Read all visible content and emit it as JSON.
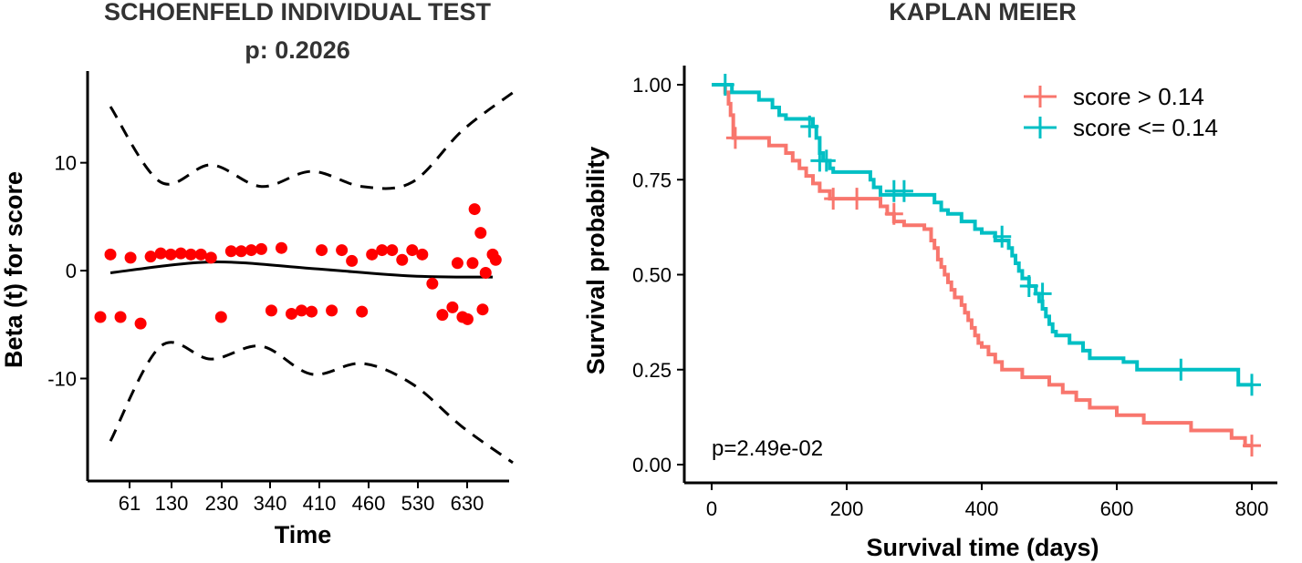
{
  "chart_data": [
    {
      "type": "scatter",
      "title": "SCHOENFELD INDIVIDUAL TEST",
      "subtitle": "p: 0.2026",
      "xlabel": "Time",
      "ylabel": "Beta (t) for score",
      "x_tick_labels": [
        "61",
        "130",
        "230",
        "340",
        "410",
        "460",
        "530",
        "630"
      ],
      "y_ticks": [
        10,
        0,
        -10
      ],
      "y_tick_labels": [
        "10",
        "0",
        "-10"
      ],
      "ylim": [
        -19.5,
        18.5
      ],
      "xlim": [
        0,
        40
      ],
      "point_color": "#ff0000",
      "points": {
        "x": [
          1,
          2,
          3,
          4,
          5,
          6,
          7,
          8,
          9,
          10,
          11,
          12,
          13,
          14,
          15,
          16,
          17,
          18,
          19,
          20,
          21,
          22,
          23,
          24,
          25,
          26,
          27,
          28,
          29,
          30,
          31,
          32,
          33,
          34,
          35,
          36,
          37,
          38,
          39,
          40
        ],
        "y": [
          -4.3,
          1.5,
          -4.3,
          1.2,
          -4.9,
          1.3,
          1.6,
          1.5,
          1.6,
          1.5,
          1.5,
          1.2,
          -4.3,
          1.8,
          1.8,
          1.9,
          2.0,
          -3.7,
          2.1,
          -4.0,
          -3.7,
          -3.8,
          1.9,
          -3.7,
          1.9,
          0.9,
          -3.8,
          1.5,
          1.9,
          1.9,
          1.0,
          1.9,
          1.5,
          -1.2,
          -4.1,
          -3.4,
          -4.3,
          0.7,
          -3.6,
          1.5
        ]
      },
      "extra_points": {
        "x": [
          36.5,
          37.5,
          38.2,
          38.8,
          39.3,
          40.3
        ],
        "y": [
          0.7,
          -4.5,
          5.7,
          3.5,
          -0.2,
          1.0
        ]
      },
      "fit_line": {
        "x": [
          2,
          12,
          22,
          32,
          40
        ],
        "y": [
          -0.2,
          0.8,
          0.2,
          -0.5,
          -0.6
        ]
      },
      "upper_band": {
        "x": [
          2,
          7,
          12,
          17,
          22,
          27,
          32,
          37,
          42
        ],
        "y": [
          15.2,
          8.2,
          9.8,
          7.8,
          9.2,
          7.8,
          8.2,
          13.0,
          16.5
        ]
      },
      "lower_band": {
        "x": [
          2,
          7,
          12,
          17,
          22,
          27,
          32,
          37,
          42
        ],
        "y": [
          -15.8,
          -7.0,
          -8.2,
          -7.0,
          -9.6,
          -8.6,
          -10.5,
          -14.5,
          -17.8
        ]
      }
    },
    {
      "type": "line",
      "title": "KAPLAN MEIER",
      "xlabel": "Survival time (days)",
      "ylabel": "Survival probability",
      "xlim": [
        -30,
        820
      ],
      "ylim": [
        -0.05,
        1.05
      ],
      "x_ticks": [
        0,
        200,
        400,
        600,
        800
      ],
      "x_tick_labels": [
        "0",
        "200",
        "400",
        "600",
        "800"
      ],
      "y_ticks": [
        0,
        0.25,
        0.5,
        0.75,
        1
      ],
      "y_tick_labels": [
        "0.00",
        "0.25",
        "0.50",
        "0.75",
        "1.00"
      ],
      "annotation": "p=2.49e-02",
      "legend_position": "top-right",
      "series": [
        {
          "name": "score > 0.14",
          "color": "#f8766d",
          "steps": [
            [
              0,
              1.0
            ],
            [
              20,
              0.98
            ],
            [
              25,
              0.95
            ],
            [
              28,
              0.92
            ],
            [
              32,
              0.86
            ],
            [
              50,
              0.86
            ],
            [
              60,
              0.86
            ],
            [
              80,
              0.86
            ],
            [
              85,
              0.84
            ],
            [
              100,
              0.84
            ],
            [
              110,
              0.82
            ],
            [
              120,
              0.8
            ],
            [
              130,
              0.78
            ],
            [
              140,
              0.76
            ],
            [
              150,
              0.74
            ],
            [
              160,
              0.72
            ],
            [
              175,
              0.7
            ],
            [
              240,
              0.7
            ],
            [
              250,
              0.68
            ],
            [
              260,
              0.66
            ],
            [
              270,
              0.64
            ],
            [
              285,
              0.63
            ],
            [
              315,
              0.62
            ],
            [
              325,
              0.59
            ],
            [
              330,
              0.57
            ],
            [
              335,
              0.54
            ],
            [
              340,
              0.52
            ],
            [
              345,
              0.5
            ],
            [
              350,
              0.48
            ],
            [
              355,
              0.46
            ],
            [
              360,
              0.44
            ],
            [
              370,
              0.42
            ],
            [
              375,
              0.4
            ],
            [
              380,
              0.38
            ],
            [
              385,
              0.36
            ],
            [
              390,
              0.34
            ],
            [
              395,
              0.32
            ],
            [
              400,
              0.31
            ],
            [
              410,
              0.29
            ],
            [
              420,
              0.27
            ],
            [
              430,
              0.25
            ],
            [
              450,
              0.25
            ],
            [
              460,
              0.23
            ],
            [
              480,
              0.23
            ],
            [
              500,
              0.21
            ],
            [
              520,
              0.19
            ],
            [
              540,
              0.17
            ],
            [
              560,
              0.15
            ],
            [
              590,
              0.15
            ],
            [
              600,
              0.13
            ],
            [
              630,
              0.13
            ],
            [
              640,
              0.11
            ],
            [
              700,
              0.11
            ],
            [
              710,
              0.09
            ],
            [
              760,
              0.09
            ],
            [
              770,
              0.07
            ],
            [
              790,
              0.05
            ],
            [
              800,
              0.05
            ]
          ],
          "censors": [
            [
              35,
              0.86
            ],
            [
              180,
              0.7
            ],
            [
              215,
              0.7
            ],
            [
              270,
              0.66
            ],
            [
              800,
              0.05
            ]
          ]
        },
        {
          "name": "score <= 0.14",
          "color": "#00bfc4",
          "steps": [
            [
              0,
              1.0
            ],
            [
              10,
              1.0
            ],
            [
              20,
              1.0
            ],
            [
              30,
              0.98
            ],
            [
              60,
              0.98
            ],
            [
              70,
              0.96
            ],
            [
              90,
              0.94
            ],
            [
              100,
              0.92
            ],
            [
              110,
              0.91
            ],
            [
              140,
              0.91
            ],
            [
              150,
              0.89
            ],
            [
              155,
              0.86
            ],
            [
              160,
              0.82
            ],
            [
              165,
              0.8
            ],
            [
              175,
              0.78
            ],
            [
              180,
              0.77
            ],
            [
              230,
              0.77
            ],
            [
              235,
              0.75
            ],
            [
              240,
              0.73
            ],
            [
              250,
              0.71
            ],
            [
              320,
              0.71
            ],
            [
              330,
              0.69
            ],
            [
              340,
              0.67
            ],
            [
              350,
              0.66
            ],
            [
              370,
              0.64
            ],
            [
              390,
              0.62
            ],
            [
              400,
              0.61
            ],
            [
              420,
              0.59
            ],
            [
              440,
              0.57
            ],
            [
              445,
              0.55
            ],
            [
              450,
              0.53
            ],
            [
              455,
              0.51
            ],
            [
              460,
              0.49
            ],
            [
              470,
              0.47
            ],
            [
              480,
              0.45
            ],
            [
              485,
              0.43
            ],
            [
              490,
              0.41
            ],
            [
              495,
              0.39
            ],
            [
              500,
              0.37
            ],
            [
              505,
              0.35
            ],
            [
              510,
              0.34
            ],
            [
              530,
              0.32
            ],
            [
              550,
              0.3
            ],
            [
              560,
              0.28
            ],
            [
              600,
              0.28
            ],
            [
              610,
              0.27
            ],
            [
              630,
              0.25
            ],
            [
              770,
              0.25
            ],
            [
              780,
              0.21
            ],
            [
              800,
              0.21
            ]
          ],
          "censors": [
            [
              20,
              1.0
            ],
            [
              145,
              0.89
            ],
            [
              160,
              0.8
            ],
            [
              170,
              0.8
            ],
            [
              270,
              0.72
            ],
            [
              285,
              0.72
            ],
            [
              430,
              0.6
            ],
            [
              470,
              0.47
            ],
            [
              490,
              0.45
            ],
            [
              695,
              0.25
            ],
            [
              800,
              0.21
            ]
          ]
        }
      ]
    }
  ]
}
